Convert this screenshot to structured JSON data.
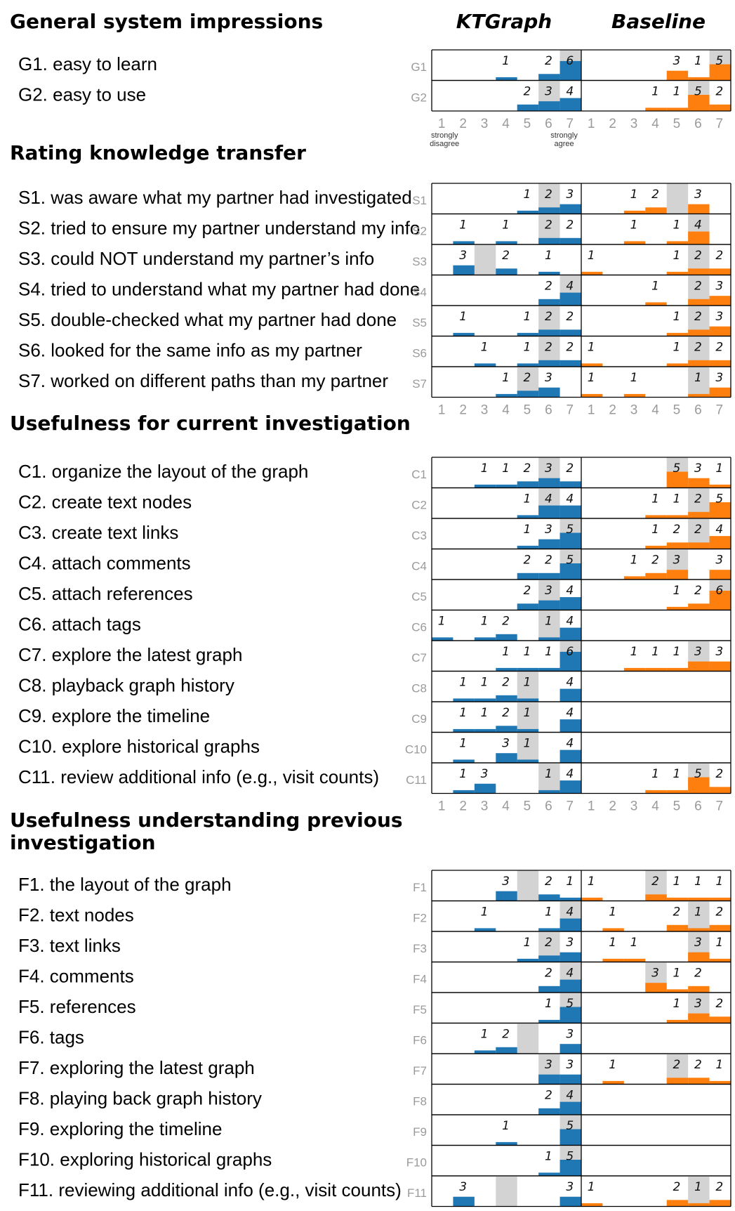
{
  "chart_data": {
    "type": "bar",
    "columns": [
      "KTGraph",
      "Baseline"
    ],
    "scale": [
      1,
      2,
      3,
      4,
      5,
      6,
      7
    ],
    "scale_notes": {
      "low": [
        "strongly",
        "disagree"
      ],
      "high": [
        "strongly",
        "agree"
      ]
    },
    "colors": {
      "KTGraph": "#1f77b4",
      "Baseline": "#ff7f0e",
      "median": "#d3d3d3"
    },
    "sections": [
      {
        "title": [
          "General system impressions"
        ],
        "ticks_after": true,
        "notes_after": true,
        "items": [
          {
            "code": "G1",
            "label": "G1. easy to learn",
            "ktgraph": {
              "counts": [
                0,
                0,
                0,
                1,
                0,
                2,
                6
              ],
              "median": 7
            },
            "baseline": {
              "counts": [
                0,
                0,
                0,
                0,
                3,
                1,
                5
              ],
              "median": 7
            }
          },
          {
            "code": "G2",
            "label": "G2. easy to use",
            "ktgraph": {
              "counts": [
                0,
                0,
                0,
                0,
                2,
                3,
                4
              ],
              "median": 6
            },
            "baseline": {
              "counts": [
                0,
                0,
                0,
                1,
                1,
                5,
                2
              ],
              "median": 6
            }
          }
        ]
      },
      {
        "title": [
          "Rating knowledge transfer"
        ],
        "ticks_after": true,
        "items": [
          {
            "code": "S1",
            "label": "S1. was aware what my partner had investigated",
            "ktgraph": {
              "counts": [
                0,
                0,
                0,
                0,
                1,
                2,
                3
              ],
              "median": 6
            },
            "baseline": {
              "counts": [
                0,
                0,
                1,
                2,
                0,
                3,
                0
              ],
              "median": 5
            }
          },
          {
            "code": "S2",
            "label": "S2. tried to ensure my partner understand my info",
            "ktgraph": {
              "counts": [
                0,
                1,
                0,
                1,
                0,
                2,
                2
              ],
              "median": 6
            },
            "baseline": {
              "counts": [
                0,
                0,
                1,
                0,
                1,
                4,
                0
              ],
              "median": 6
            }
          },
          {
            "code": "S3",
            "label": "S3. could NOT understand my partner’s info",
            "ktgraph": {
              "counts": [
                0,
                3,
                0,
                2,
                0,
                1,
                0
              ],
              "median": 3
            },
            "baseline": {
              "counts": [
                1,
                0,
                0,
                0,
                1,
                2,
                2
              ],
              "median": 6
            }
          },
          {
            "code": "S4",
            "label": "S4. tried to understand what my partner had done",
            "ktgraph": {
              "counts": [
                0,
                0,
                0,
                0,
                0,
                2,
                4
              ],
              "median": 7
            },
            "baseline": {
              "counts": [
                0,
                0,
                0,
                1,
                0,
                2,
                3
              ],
              "median": 6
            }
          },
          {
            "code": "S5",
            "label": "S5. double-checked what my partner had done",
            "ktgraph": {
              "counts": [
                0,
                1,
                0,
                0,
                1,
                2,
                2
              ],
              "median": 6
            },
            "baseline": {
              "counts": [
                0,
                0,
                0,
                0,
                1,
                2,
                3
              ],
              "median": 6
            }
          },
          {
            "code": "S6",
            "label": "S6. looked for the same info as my partner",
            "ktgraph": {
              "counts": [
                0,
                0,
                1,
                0,
                1,
                2,
                2
              ],
              "median": 6
            },
            "baseline": {
              "counts": [
                1,
                0,
                0,
                0,
                1,
                2,
                2
              ],
              "median": 6
            }
          },
          {
            "code": "S7",
            "label": "S7. worked on different paths than my partner",
            "ktgraph": {
              "counts": [
                0,
                0,
                0,
                1,
                2,
                3,
                0
              ],
              "median": 5
            },
            "baseline": {
              "counts": [
                1,
                0,
                1,
                0,
                0,
                1,
                3
              ],
              "median": 6
            }
          }
        ]
      },
      {
        "title": [
          "Usefulness for current investigation"
        ],
        "ticks_after": true,
        "items": [
          {
            "code": "C1",
            "label": "C1. organize the layout of the graph",
            "ktgraph": {
              "counts": [
                0,
                0,
                1,
                1,
                2,
                3,
                2
              ],
              "median": 6
            },
            "baseline": {
              "counts": [
                0,
                0,
                0,
                0,
                5,
                3,
                1
              ],
              "median": 5
            }
          },
          {
            "code": "C2",
            "label": "C2. create text nodes",
            "ktgraph": {
              "counts": [
                0,
                0,
                0,
                0,
                1,
                4,
                4
              ],
              "median": 6
            },
            "baseline": {
              "counts": [
                0,
                0,
                0,
                1,
                1,
                2,
                5
              ],
              "median": 6
            }
          },
          {
            "code": "C3",
            "label": "C3. create text links",
            "ktgraph": {
              "counts": [
                0,
                0,
                0,
                0,
                1,
                3,
                5
              ],
              "median": 7
            },
            "baseline": {
              "counts": [
                0,
                0,
                0,
                1,
                2,
                2,
                4
              ],
              "median": 6
            }
          },
          {
            "code": "C4",
            "label": "C4. attach comments",
            "ktgraph": {
              "counts": [
                0,
                0,
                0,
                0,
                2,
                2,
                5
              ],
              "median": 7
            },
            "baseline": {
              "counts": [
                0,
                0,
                1,
                2,
                3,
                0,
                3
              ],
              "median": 5
            }
          },
          {
            "code": "C5",
            "label": "C5. attach references",
            "ktgraph": {
              "counts": [
                0,
                0,
                0,
                0,
                2,
                3,
                4
              ],
              "median": 6
            },
            "baseline": {
              "counts": [
                0,
                0,
                0,
                0,
                1,
                2,
                6
              ],
              "median": 7
            }
          },
          {
            "code": "C6",
            "label": "C6. attach tags",
            "ktgraph": {
              "counts": [
                1,
                0,
                1,
                2,
                0,
                1,
                4
              ],
              "median": 6
            },
            "baseline": null
          },
          {
            "code": "C7",
            "label": "C7. explore the latest graph",
            "ktgraph": {
              "counts": [
                0,
                0,
                0,
                1,
                1,
                1,
                6
              ],
              "median": 7
            },
            "baseline": {
              "counts": [
                0,
                0,
                1,
                1,
                1,
                3,
                3
              ],
              "median": 6
            }
          },
          {
            "code": "C8",
            "label": "C8. playback graph history",
            "ktgraph": {
              "counts": [
                0,
                1,
                1,
                2,
                1,
                0,
                4
              ],
              "median": 5
            },
            "baseline": null
          },
          {
            "code": "C9",
            "label": "C9. explore the timeline",
            "ktgraph": {
              "counts": [
                0,
                1,
                1,
                2,
                1,
                0,
                4
              ],
              "median": 5
            },
            "baseline": null
          },
          {
            "code": "C10",
            "label": "C10. explore historical graphs",
            "ktgraph": {
              "counts": [
                0,
                1,
                0,
                3,
                1,
                0,
                4
              ],
              "median": 5
            },
            "baseline": null
          },
          {
            "code": "C11",
            "label": "C11. review additional info (e.g., visit counts)",
            "ktgraph": {
              "counts": [
                0,
                1,
                3,
                0,
                0,
                1,
                4
              ],
              "median": 6
            },
            "baseline": {
              "counts": [
                0,
                0,
                0,
                1,
                1,
                5,
                2
              ],
              "median": 6
            }
          }
        ]
      },
      {
        "title": [
          "Usefulness understanding previous",
          "investigation"
        ],
        "ticks_after": true,
        "items": [
          {
            "code": "F1",
            "label": "F1. the layout of the graph",
            "ktgraph": {
              "counts": [
                0,
                0,
                0,
                3,
                0,
                2,
                1
              ],
              "median": 5
            },
            "baseline": {
              "counts": [
                1,
                0,
                0,
                2,
                1,
                1,
                1
              ],
              "median": 4
            }
          },
          {
            "code": "F2",
            "label": "F2. text nodes",
            "ktgraph": {
              "counts": [
                0,
                0,
                1,
                0,
                0,
                1,
                4
              ],
              "median": 7
            },
            "baseline": {
              "counts": [
                0,
                1,
                0,
                0,
                2,
                1,
                2
              ],
              "median": 6
            }
          },
          {
            "code": "F3",
            "label": "F3. text links",
            "ktgraph": {
              "counts": [
                0,
                0,
                0,
                0,
                1,
                2,
                3
              ],
              "median": 6
            },
            "baseline": {
              "counts": [
                0,
                1,
                1,
                0,
                0,
                3,
                1
              ],
              "median": 6
            }
          },
          {
            "code": "F4",
            "label": "F4. comments",
            "ktgraph": {
              "counts": [
                0,
                0,
                0,
                0,
                0,
                2,
                4
              ],
              "median": 7
            },
            "baseline": {
              "counts": [
                0,
                0,
                0,
                3,
                1,
                2,
                0
              ],
              "median": 4
            }
          },
          {
            "code": "F5",
            "label": "F5. references",
            "ktgraph": {
              "counts": [
                0,
                0,
                0,
                0,
                0,
                1,
                5
              ],
              "median": 7
            },
            "baseline": {
              "counts": [
                0,
                0,
                0,
                0,
                1,
                3,
                2
              ],
              "median": 6
            }
          },
          {
            "code": "F6",
            "label": "F6. tags",
            "ktgraph": {
              "counts": [
                0,
                0,
                1,
                2,
                0,
                0,
                3
              ],
              "median": 5
            },
            "baseline": null
          },
          {
            "code": "F7",
            "label": "F7. exploring the latest graph",
            "ktgraph": {
              "counts": [
                0,
                0,
                0,
                0,
                0,
                3,
                3
              ],
              "median": 6
            },
            "baseline": {
              "counts": [
                0,
                1,
                0,
                0,
                2,
                2,
                1
              ],
              "median": 5
            }
          },
          {
            "code": "F8",
            "label": "F8. playing back graph history",
            "ktgraph": {
              "counts": [
                0,
                0,
                0,
                0,
                0,
                2,
                4
              ],
              "median": 7
            },
            "baseline": null
          },
          {
            "code": "F9",
            "label": "F9. exploring the timeline",
            "ktgraph": {
              "counts": [
                0,
                0,
                0,
                1,
                0,
                0,
                5
              ],
              "median": 7
            },
            "baseline": null
          },
          {
            "code": "F10",
            "label": "F10. exploring historical graphs",
            "ktgraph": {
              "counts": [
                0,
                0,
                0,
                0,
                0,
                1,
                5
              ],
              "median": 7
            },
            "baseline": null
          },
          {
            "code": "F11",
            "label": "F11. reviewing additional info (e.g., visit counts)",
            "ktgraph": {
              "counts": [
                0,
                3,
                0,
                0,
                0,
                0,
                3
              ],
              "median": 4
            },
            "baseline": {
              "counts": [
                1,
                0,
                0,
                0,
                2,
                1,
                2
              ],
              "median": 6
            }
          }
        ]
      }
    ]
  }
}
